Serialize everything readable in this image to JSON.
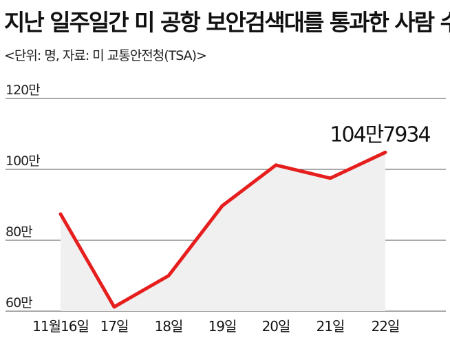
{
  "title": "지난 일주일간 미 공항 보안검색대를 통과한 사람 수",
  "subtitle": "<단위: 명, 자료: 미 교통안전청(TSA)>",
  "chart_data": {
    "type": "area",
    "categories": [
      "11월16일",
      "17일",
      "18일",
      "19일",
      "20일",
      "21일",
      "22일"
    ],
    "values": [
      874000,
      612000,
      700000,
      897000,
      1012000,
      975000,
      1047934
    ],
    "ylim": [
      600000,
      1200000
    ],
    "yticks": [
      {
        "value": 600000,
        "label": "60만"
      },
      {
        "value": 800000,
        "label": "80만"
      },
      {
        "value": 1000000,
        "label": "100만"
      },
      {
        "value": 1200000,
        "label": "120만"
      }
    ],
    "annotation": {
      "index": 6,
      "label": "104만7934"
    },
    "grid": true,
    "colors": {
      "line": "#e61e1e",
      "fill": "#f0f0f0",
      "grid": "#555555"
    }
  }
}
